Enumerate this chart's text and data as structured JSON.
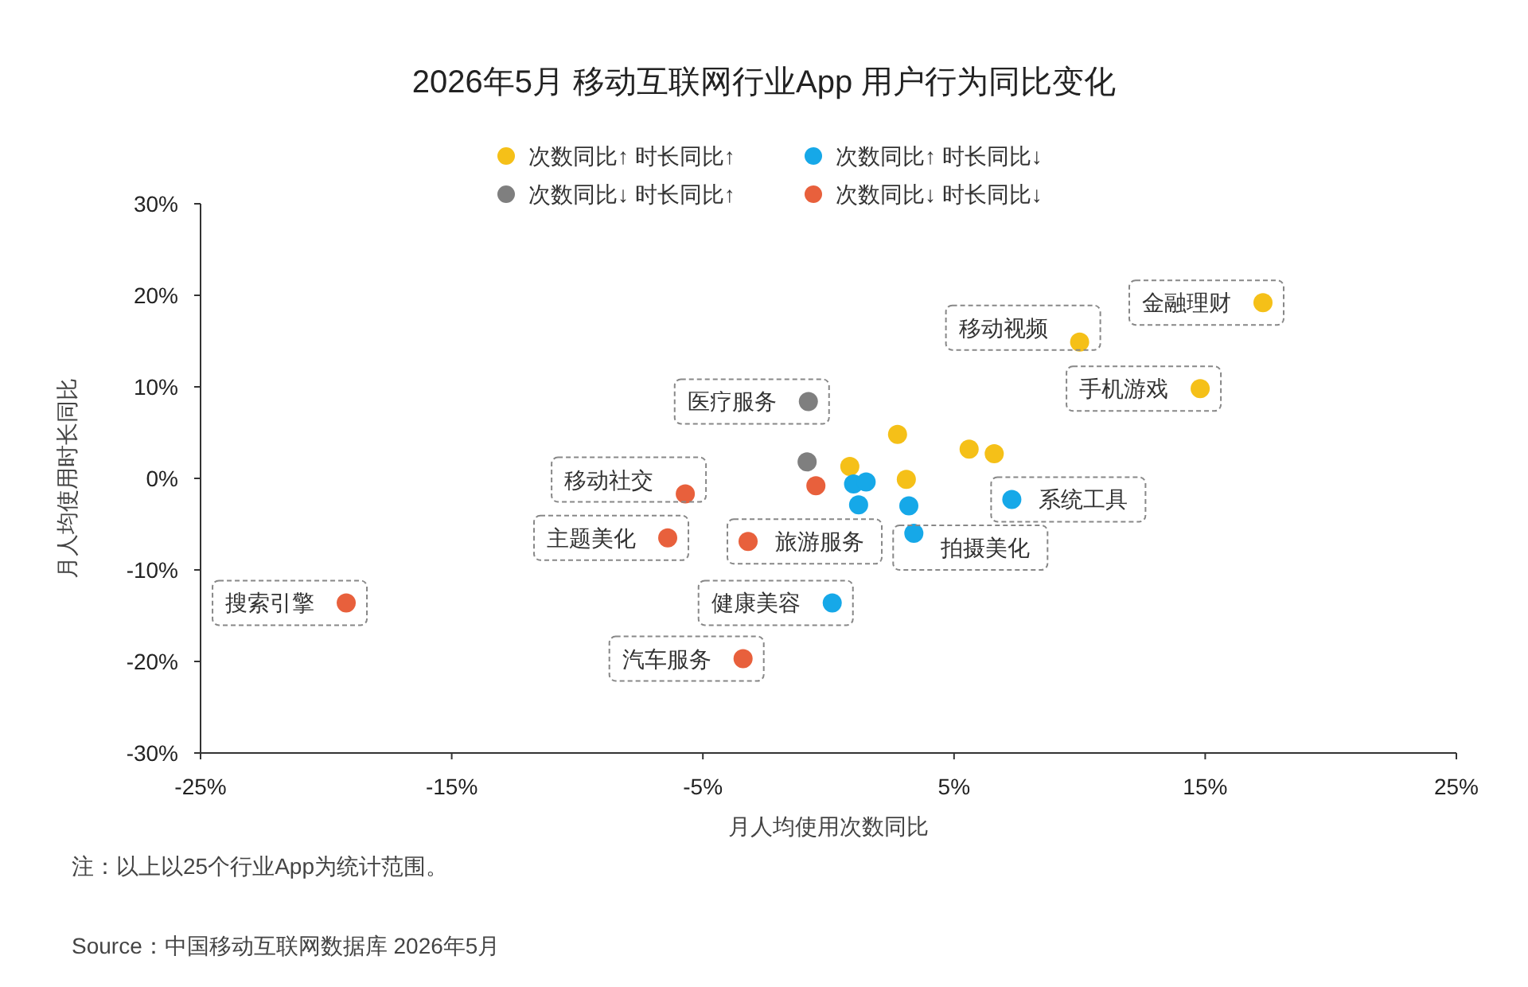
{
  "chart_data": {
    "type": "scatter",
    "title": "2026年5月 移动互联网行业App 用户行为同比变化",
    "xlabel": "月人均使用次数同比",
    "ylabel": "月人均使用时长同比",
    "xlim": [
      -25,
      25
    ],
    "ylim": [
      -30,
      30
    ],
    "xticks": [
      {
        "value": -25,
        "label": "-25%"
      },
      {
        "value": -15,
        "label": "-15%"
      },
      {
        "value": -5,
        "label": "-5%"
      },
      {
        "value": 5,
        "label": "5%"
      },
      {
        "value": 15,
        "label": "15%"
      },
      {
        "value": 25,
        "label": "25%"
      }
    ],
    "yticks": [
      {
        "value": -30,
        "label": "-30%"
      },
      {
        "value": -20,
        "label": "-20%"
      },
      {
        "value": -10,
        "label": "-10%"
      },
      {
        "value": 0,
        "label": "0%"
      },
      {
        "value": 10,
        "label": "10%"
      },
      {
        "value": 20,
        "label": "20%"
      },
      {
        "value": 30,
        "label": "30%"
      }
    ],
    "grid": false,
    "legend": "top",
    "marker": "circle",
    "series": [
      {
        "name": "次数同比↑ 时长同比↑",
        "color": "#f5c018",
        "x": [
          17.3,
          10.0,
          14.8,
          2.75,
          5.6,
          6.6,
          0.85,
          3.1
        ],
        "values": [
          19.2,
          14.9,
          9.8,
          4.8,
          3.2,
          2.7,
          1.3,
          -0.1
        ]
      },
      {
        "name": "次数同比↑ 时长同比↓",
        "color": "#16a8e8",
        "x": [
          7.3,
          3.4,
          0.15,
          1.0,
          1.5,
          1.2,
          3.2
        ],
        "values": [
          -2.3,
          -6.0,
          -13.6,
          -0.6,
          -0.4,
          -2.9,
          -3.0
        ]
      },
      {
        "name": "次数同比↓ 时长同比↑",
        "color": "#7f7f7f",
        "x": [
          -0.8,
          -0.85
        ],
        "values": [
          8.4,
          1.8
        ]
      },
      {
        "name": "次数同比↓ 时长同比↓",
        "color": "#e8603c",
        "x": [
          -5.7,
          -6.4,
          -3.2,
          -19.2,
          -3.4,
          -0.5
        ],
        "values": [
          -1.7,
          -6.5,
          -6.9,
          -13.6,
          -19.7,
          -0.8
        ]
      }
    ],
    "annotations": [
      {
        "text": "金融理财",
        "x": 17.3,
        "y": 19.2
      },
      {
        "text": "移动视频",
        "x": 10.0,
        "y": 14.9
      },
      {
        "text": "手机游戏",
        "x": 14.8,
        "y": 9.8
      },
      {
        "text": "医疗服务",
        "x": -0.8,
        "y": 8.4
      },
      {
        "text": "系统工具",
        "x": 7.3,
        "y": -2.3
      },
      {
        "text": "拍摄美化",
        "x": 3.4,
        "y": -6.0
      },
      {
        "text": "健康美容",
        "x": 0.15,
        "y": -13.6
      },
      {
        "text": "移动社交",
        "x": -5.7,
        "y": -1.7
      },
      {
        "text": "主题美化",
        "x": -6.4,
        "y": -6.5
      },
      {
        "text": "旅游服务",
        "x": -3.2,
        "y": -6.9
      },
      {
        "text": "搜索引擎",
        "x": -19.2,
        "y": -13.6
      },
      {
        "text": "汽车服务",
        "x": -3.4,
        "y": -19.7
      },
      "注：以上以25个行业App为统计范围。",
      "Source：中国移动互联网数据库 2026年5月"
    ]
  }
}
